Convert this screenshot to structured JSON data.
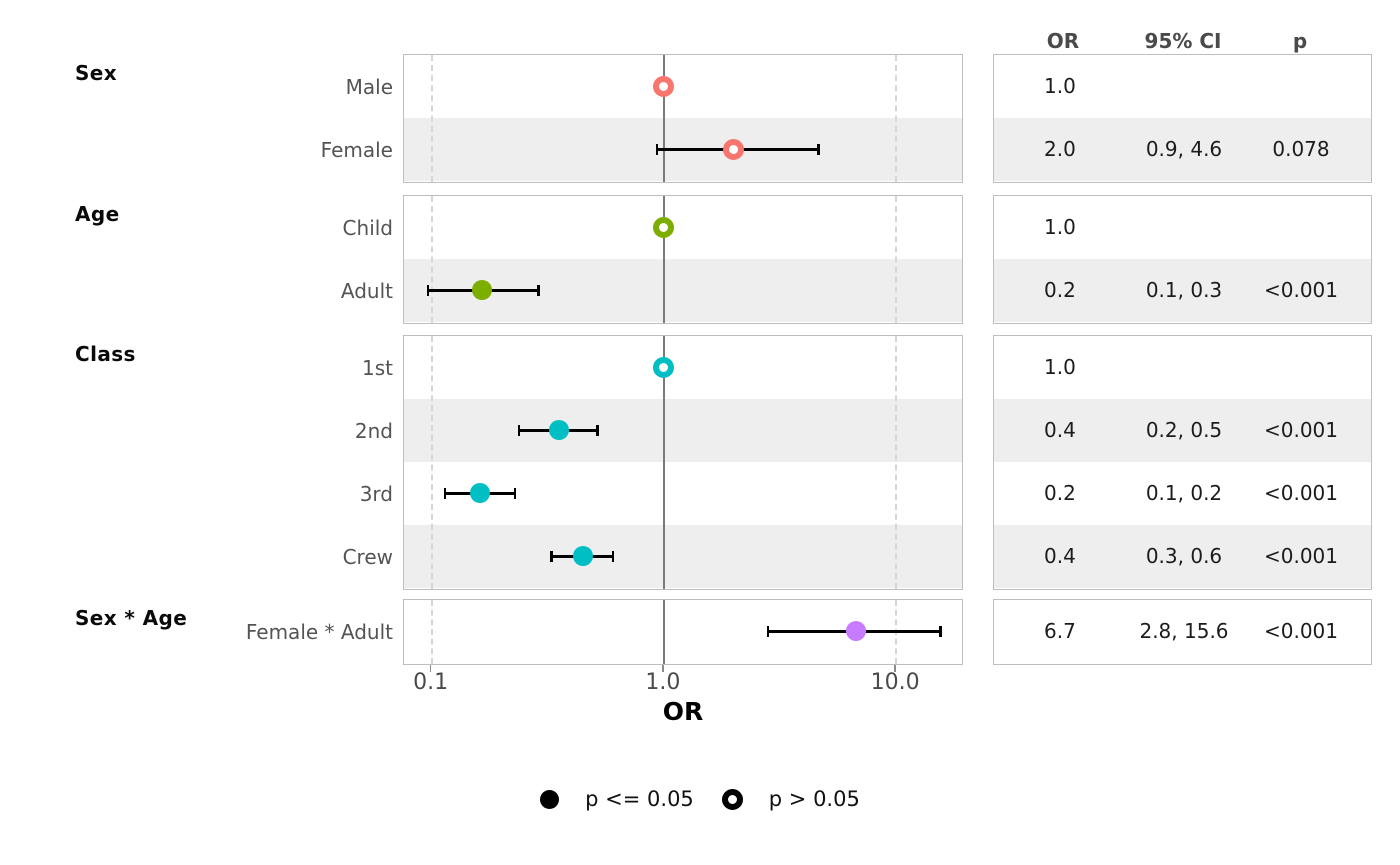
{
  "colors": {
    "sex": "#F8766D",
    "age": "#7CAE00",
    "class": "#00BFC4",
    "interaction": "#C77CFF",
    "stripe": "#EEEEEE",
    "panel_border": "#BEBEBE",
    "grid_line": "#D6D6D6",
    "reference_line": "#7A7A7A",
    "marker_black": "#000000"
  },
  "table": {
    "headers": [
      "OR",
      "95% CI",
      "p"
    ]
  },
  "legend": {
    "items": [
      {
        "label": "p <= 0.05",
        "marker": "filled-circle"
      },
      {
        "label": "p > 0.05",
        "marker": "open-circle"
      }
    ]
  },
  "chart_data": {
    "type": "scatter",
    "subtype": "forest-plot",
    "xlabel": "OR",
    "x_scale": "log10",
    "x_ticks": [
      "0.1",
      "1.0",
      "10.0"
    ],
    "x_tick_values": [
      0.1,
      1.0,
      10.0
    ],
    "x_range": [
      0.076,
      19.6
    ],
    "reference_line": 1.0,
    "groups": [
      {
        "label": "Sex",
        "color": "#F8766D",
        "rows": [
          {
            "label": "Male",
            "estimate": 1.0,
            "ci_low": null,
            "ci_high": null,
            "reference": true,
            "significant": false,
            "or_text": "1.0",
            "ci_text": "",
            "p_text": ""
          },
          {
            "label": "Female",
            "estimate": 2.0,
            "ci_low": 0.93,
            "ci_high": 4.64,
            "reference": false,
            "significant": false,
            "or_text": "2.0",
            "ci_text": "0.9, 4.6",
            "p_text": "0.078"
          }
        ]
      },
      {
        "label": "Age",
        "color": "#7CAE00",
        "rows": [
          {
            "label": "Child",
            "estimate": 1.0,
            "ci_low": null,
            "ci_high": null,
            "reference": true,
            "significant": false,
            "or_text": "1.0",
            "ci_text": "",
            "p_text": ""
          },
          {
            "label": "Adult",
            "estimate": 0.165,
            "ci_low": 0.096,
            "ci_high": 0.289,
            "reference": false,
            "significant": true,
            "or_text": "0.2",
            "ci_text": "0.1, 0.3",
            "p_text": "<0.001"
          }
        ]
      },
      {
        "label": "Class",
        "color": "#00BFC4",
        "rows": [
          {
            "label": "1st",
            "estimate": 1.0,
            "ci_low": null,
            "ci_high": null,
            "reference": true,
            "significant": false,
            "or_text": "1.0",
            "ci_text": "",
            "p_text": ""
          },
          {
            "label": "2nd",
            "estimate": 0.353,
            "ci_low": 0.237,
            "ci_high": 0.519,
            "reference": false,
            "significant": true,
            "or_text": "0.4",
            "ci_text": "0.2, 0.5",
            "p_text": "<0.001"
          },
          {
            "label": "3rd",
            "estimate": 0.162,
            "ci_low": 0.114,
            "ci_high": 0.229,
            "reference": false,
            "significant": true,
            "or_text": "0.2",
            "ci_text": "0.1, 0.2",
            "p_text": "<0.001"
          },
          {
            "label": "Crew",
            "estimate": 0.447,
            "ci_low": 0.327,
            "ci_high": 0.605,
            "reference": false,
            "significant": true,
            "or_text": "0.4",
            "ci_text": "0.3, 0.6",
            "p_text": "<0.001"
          }
        ]
      },
      {
        "label": "Sex * Age",
        "color": "#C77CFF",
        "rows": [
          {
            "label": "Female * Adult",
            "estimate": 6.7,
            "ci_low": 2.8,
            "ci_high": 15.6,
            "reference": false,
            "significant": true,
            "or_text": "6.7",
            "ci_text": "2.8, 15.6",
            "p_text": "<0.001"
          }
        ]
      }
    ]
  }
}
